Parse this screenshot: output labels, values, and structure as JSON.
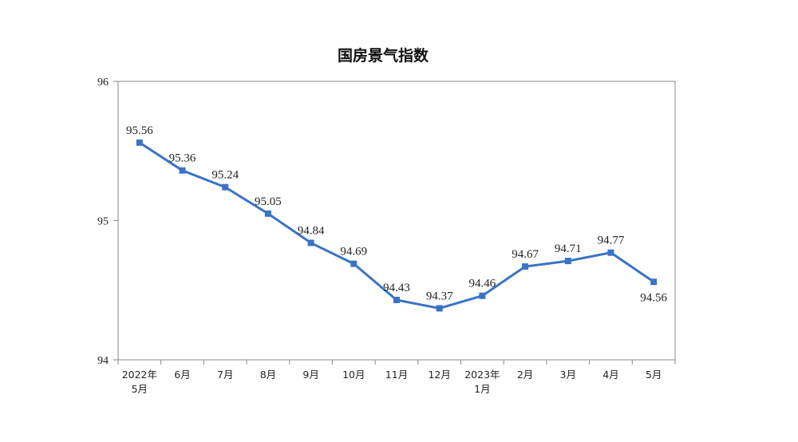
{
  "chart_data": {
    "type": "line",
    "title": "国房景气指数",
    "xlabel": "",
    "ylabel": "",
    "ylim": [
      94,
      96
    ],
    "yticks": [
      94,
      95,
      96
    ],
    "grid": false,
    "legend": "none",
    "line_color": "#3a73c4",
    "categories": [
      [
        "2022年",
        "5月"
      ],
      [
        "6月"
      ],
      [
        "7月"
      ],
      [
        "8月"
      ],
      [
        "9月"
      ],
      [
        "10月"
      ],
      [
        "11月"
      ],
      [
        "12月"
      ],
      [
        "2023年",
        "1月"
      ],
      [
        "2月"
      ],
      [
        "3月"
      ],
      [
        "4月"
      ],
      [
        "5月"
      ]
    ],
    "values": [
      95.56,
      95.36,
      95.24,
      95.05,
      94.84,
      94.69,
      94.43,
      94.37,
      94.46,
      94.67,
      94.71,
      94.77,
      94.56
    ],
    "data_labels": [
      "95.56",
      "95.36",
      "95.24",
      "95.05",
      "94.84",
      "94.69",
      "94.43",
      "94.37",
      "94.46",
      "94.67",
      "94.71",
      "94.77",
      "94.56"
    ]
  }
}
